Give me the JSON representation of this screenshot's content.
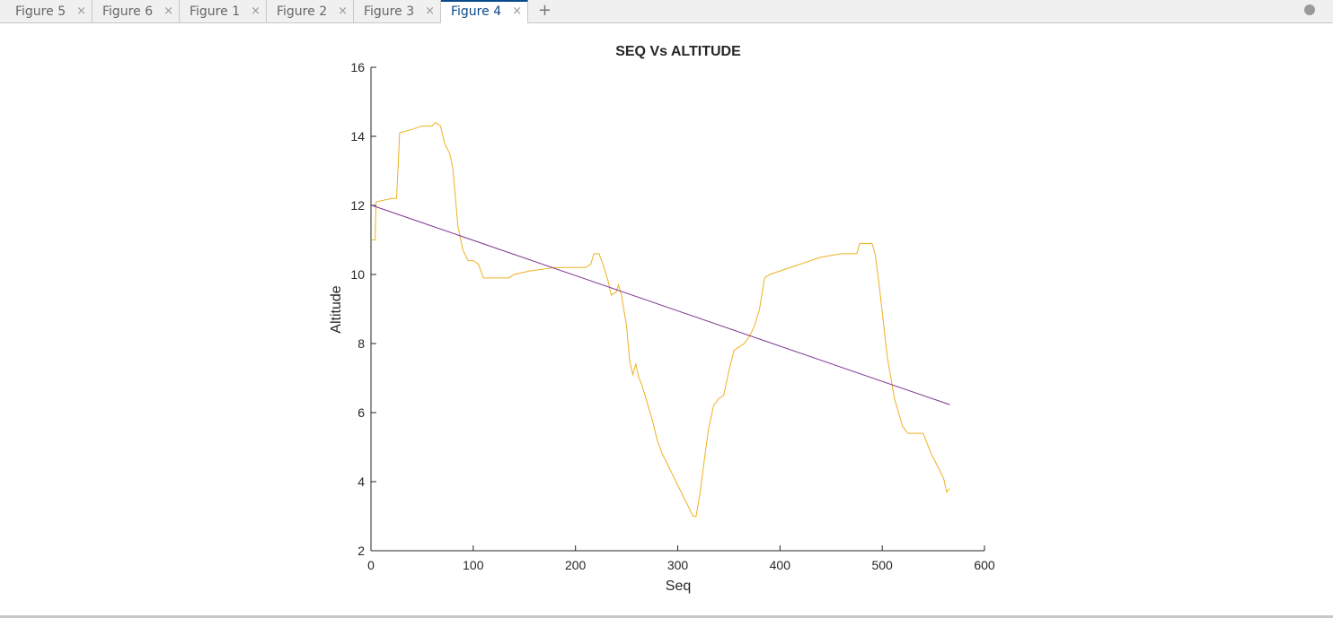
{
  "tabs": [
    "Figure 5",
    "Figure 6",
    "Figure 1",
    "Figure 2",
    "Figure 3",
    "Figure 4"
  ],
  "active_tab": 5,
  "chart_data": {
    "type": "line",
    "title": "SEQ Vs ALTITUDE",
    "x_label": "Seq",
    "y_label": "Altitude",
    "xlim": [
      0,
      600
    ],
    "xticks": [
      0,
      100,
      200,
      300,
      400,
      500,
      600
    ],
    "ylim": [
      2,
      16
    ],
    "yticks": [
      2,
      4,
      6,
      8,
      10,
      12,
      14,
      16
    ],
    "grid": false,
    "series": [
      {
        "color": "#EDB120",
        "x": [
          1,
          4,
          5,
          20,
          25,
          27,
          28,
          40,
          50,
          60,
          63,
          68,
          72,
          77,
          80,
          85,
          90,
          95,
          100,
          105,
          110,
          135,
          140,
          155,
          180,
          210,
          215,
          218,
          223,
          228,
          232,
          235,
          240,
          242,
          245,
          250,
          253,
          256,
          259,
          262,
          265,
          270,
          275,
          280,
          285,
          290,
          295,
          300,
          305,
          310,
          315,
          318,
          322,
          325,
          330,
          335,
          340,
          345,
          350,
          355,
          360,
          365,
          370,
          375,
          380,
          385,
          390,
          400,
          420,
          440,
          460,
          475,
          478,
          490,
          493,
          497,
          505,
          512,
          520,
          525,
          540,
          548,
          555,
          560,
          563,
          566
        ],
        "values": [
          11.0,
          11.0,
          12.1,
          12.2,
          12.2,
          13.4,
          14.1,
          14.2,
          14.3,
          14.3,
          14.4,
          14.3,
          13.8,
          13.5,
          13.1,
          11.4,
          10.7,
          10.4,
          10.4,
          10.3,
          9.9,
          9.9,
          10.0,
          10.1,
          10.2,
          10.2,
          10.3,
          10.6,
          10.6,
          10.2,
          9.8,
          9.4,
          9.5,
          9.7,
          9.4,
          8.5,
          7.5,
          7.1,
          7.4,
          7.0,
          6.8,
          6.3,
          5.8,
          5.2,
          4.8,
          4.5,
          4.2,
          3.9,
          3.6,
          3.3,
          3.0,
          3.0,
          3.7,
          4.4,
          5.5,
          6.2,
          6.4,
          6.5,
          7.2,
          7.8,
          7.9,
          8.0,
          8.2,
          8.5,
          9.0,
          9.9,
          10.0,
          10.1,
          10.3,
          10.5,
          10.6,
          10.6,
          10.9,
          10.9,
          10.6,
          9.7,
          7.6,
          6.4,
          5.6,
          5.4,
          5.4,
          4.8,
          4.4,
          4.1,
          3.7,
          3.8
        ]
      },
      {
        "color": "#7E2F8E",
        "x": [
          1,
          566
        ],
        "values": [
          12.0,
          6.23
        ]
      }
    ]
  }
}
